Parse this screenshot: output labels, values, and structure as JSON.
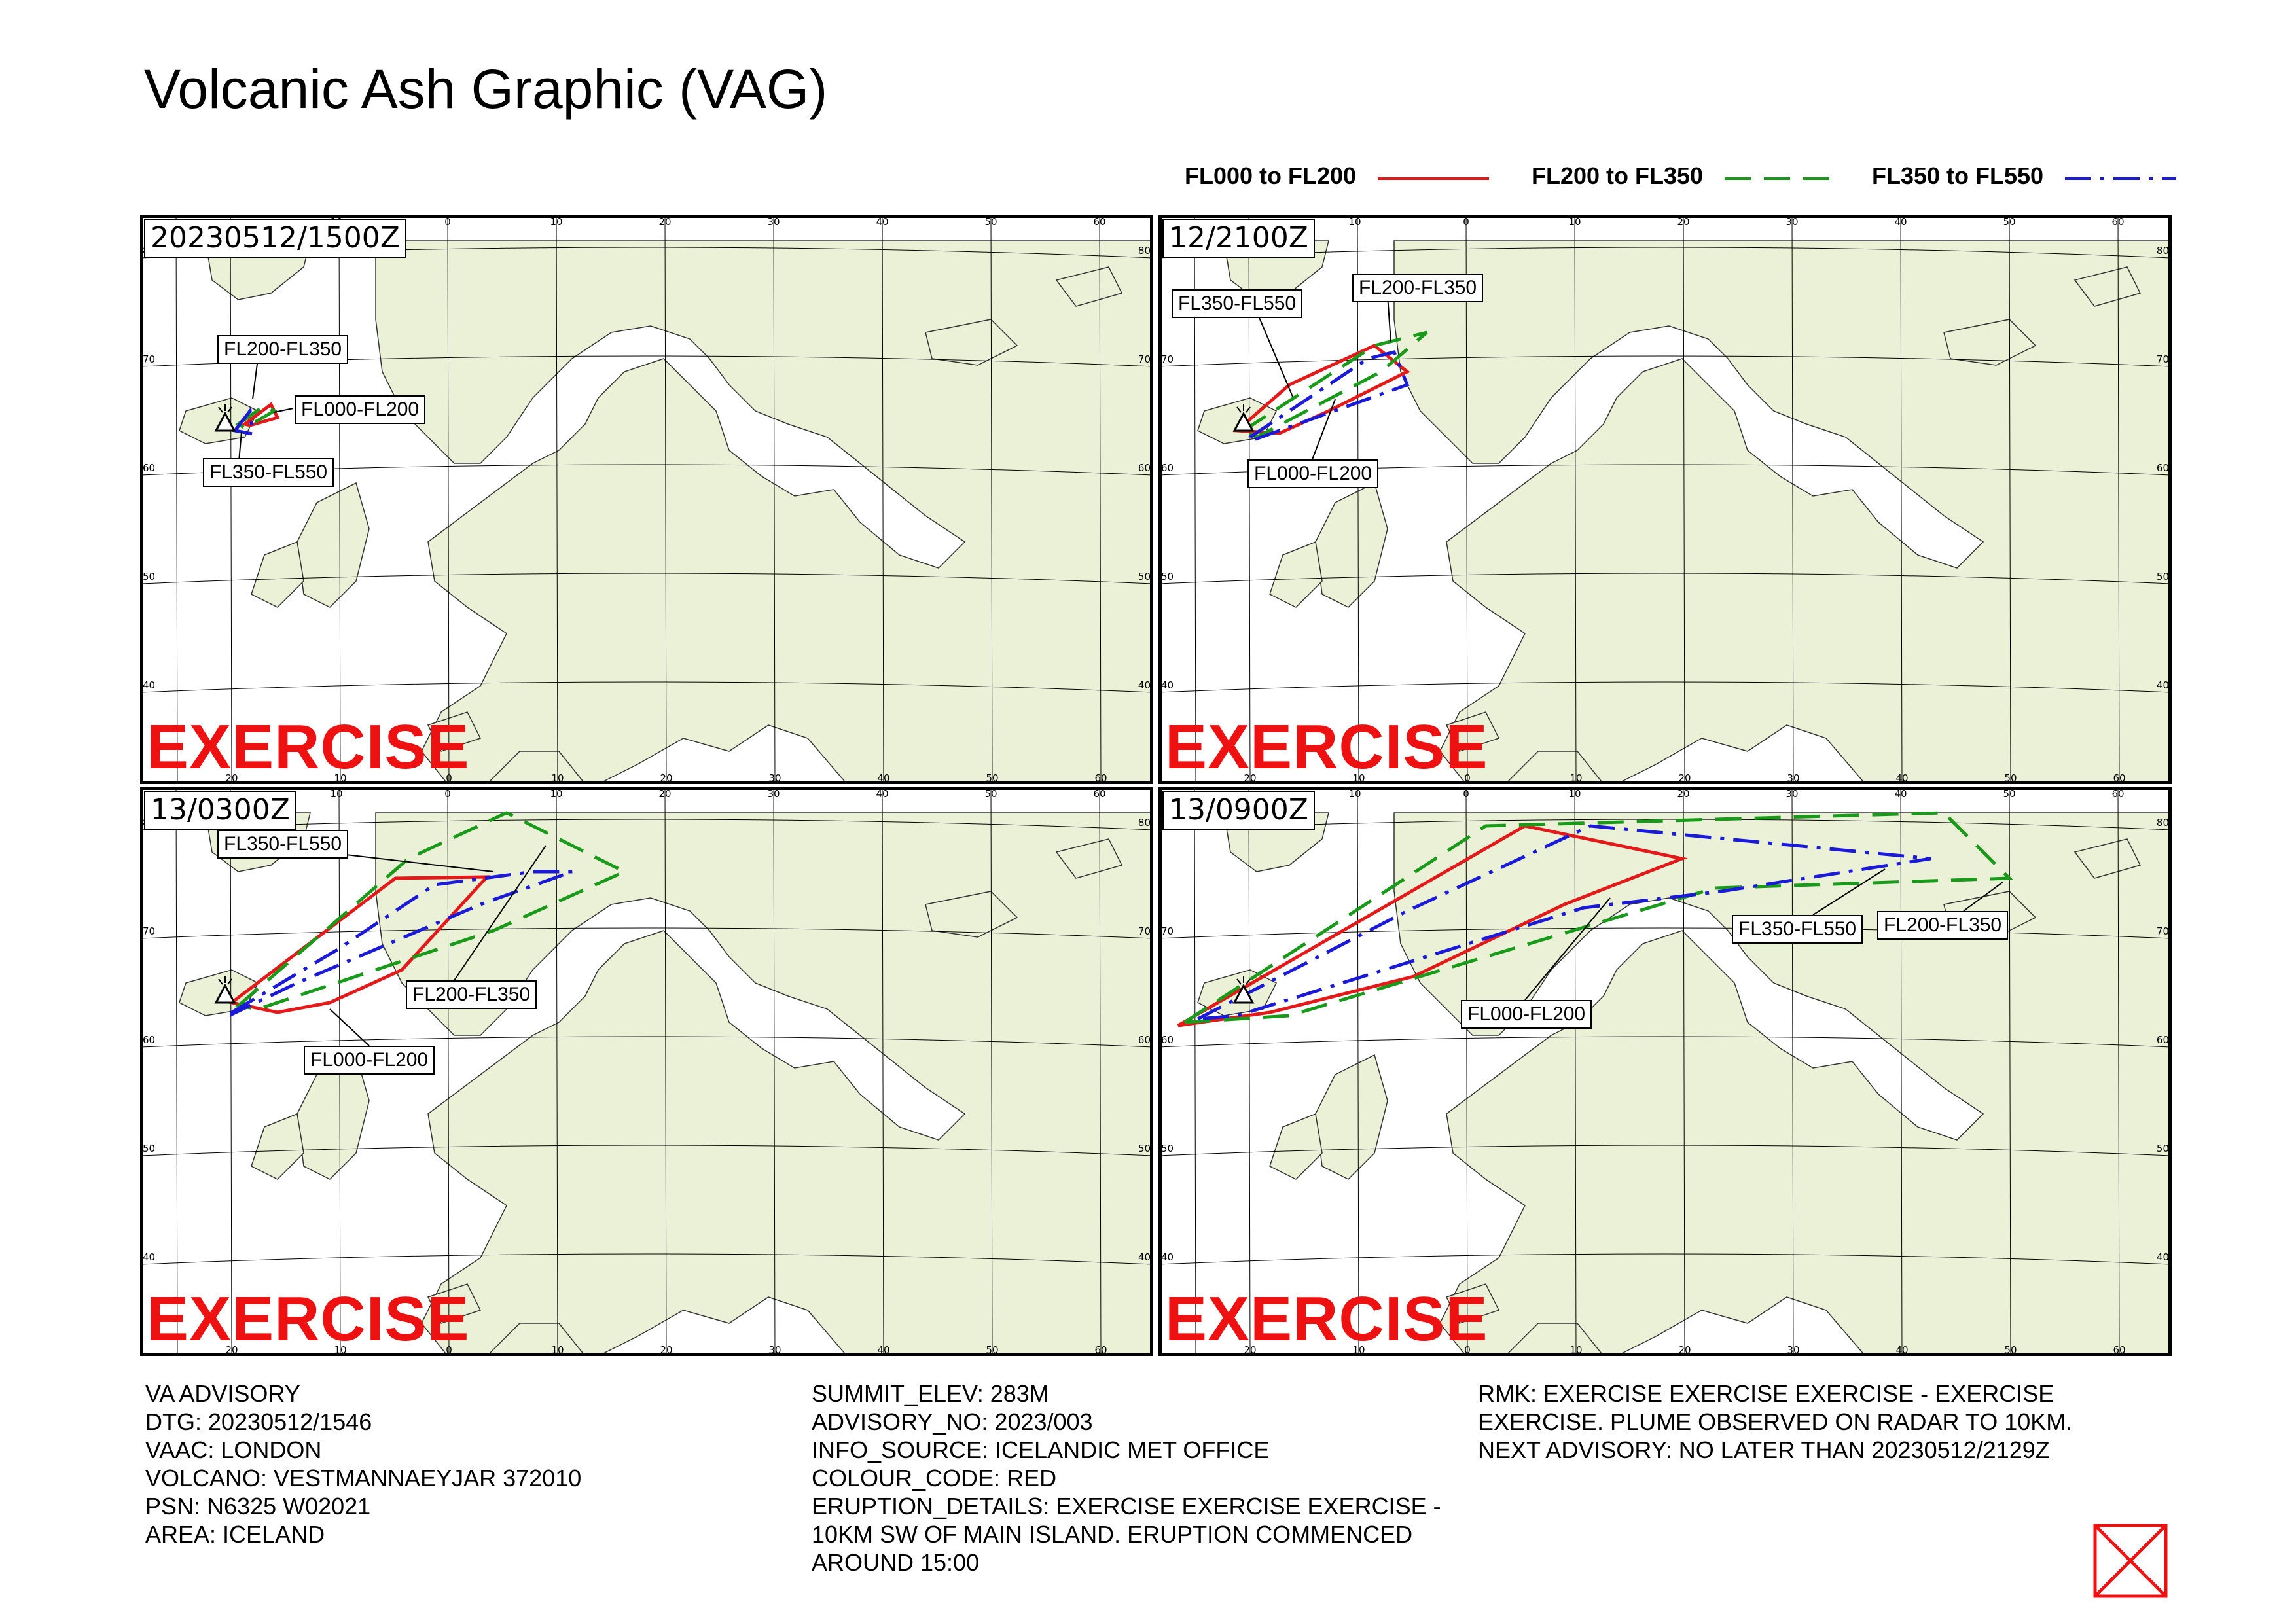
{
  "title": "Volcanic Ash Graphic (VAG)",
  "legend": [
    {
      "label": "FL000 to FL200",
      "color": "#e41a1a",
      "dash": "solid"
    },
    {
      "label": "FL200 to FL350",
      "color": "#1a9a1a",
      "dash": "dashed"
    },
    {
      "label": "FL350 to FL550",
      "color": "#1a1ad8",
      "dash": "dashdot"
    }
  ],
  "colors": {
    "land": "#eaf1d6",
    "sea": "#ffffff",
    "grid": "#000000",
    "exercise": "#ee1111",
    "fl000": "#e41a1a",
    "fl200": "#1a9a1a",
    "fl350": "#1a1ad8"
  },
  "grid": {
    "longitudes_top": [
      "0",
      "10",
      "20",
      "30",
      "40",
      "50",
      "60"
    ],
    "longitudes_top_left": [
      "10"
    ],
    "longitudes_bottom": [
      "20",
      "10",
      "0",
      "10",
      "20",
      "30",
      "40",
      "50",
      "60"
    ],
    "latitudes": [
      "80",
      "70",
      "60",
      "50",
      "40"
    ]
  },
  "volcano_icon": "volcano-triangle-icon",
  "panels": [
    {
      "time": "20230512/1500Z",
      "watermark": "EXERCISE",
      "labels": [
        {
          "text": "FL200-FL350"
        },
        {
          "text": "FL000-FL200"
        },
        {
          "text": "FL350-FL550"
        }
      ]
    },
    {
      "time": "12/2100Z",
      "watermark": "EXERCISE",
      "labels": [
        {
          "text": "FL350-FL550"
        },
        {
          "text": "FL200-FL350"
        },
        {
          "text": "FL000-FL200"
        }
      ]
    },
    {
      "time": "13/0300Z",
      "watermark": "EXERCISE",
      "labels": [
        {
          "text": "FL350-FL550"
        },
        {
          "text": "FL200-FL350"
        },
        {
          "text": "FL000-FL200"
        }
      ]
    },
    {
      "time": "13/0900Z",
      "watermark": "EXERCISE",
      "labels": [
        {
          "text": "FL350-FL550"
        },
        {
          "text": "FL200-FL350"
        },
        {
          "text": "FL000-FL200"
        }
      ]
    }
  ],
  "advisory": {
    "col1": [
      "VA ADVISORY",
      "DTG: 20230512/1546",
      "VAAC: LONDON",
      "VOLCANO: VESTMANNAEYJAR 372010",
      "PSN: N6325 W02021",
      "AREA: ICELAND"
    ],
    "col2": [
      "SUMMIT_ELEV: 283M",
      "ADVISORY_NO: 2023/003",
      "INFO_SOURCE: ICELANDIC MET OFFICE",
      "COLOUR_CODE: RED",
      "ERUPTION_DETAILS: EXERCISE EXERCISE EXERCISE -",
      "10KM SW OF MAIN ISLAND. ERUPTION COMMENCED",
      "AROUND 15:00"
    ],
    "col3": [
      "RMK: EXERCISE EXERCISE EXERCISE - EXERCISE",
      "EXERCISE. PLUME OBSERVED ON RADAR TO 10KM.",
      "NEXT ADVISORY: NO LATER THAN 20230512/2129Z"
    ]
  },
  "seal_icon": "red-cross-box-icon"
}
